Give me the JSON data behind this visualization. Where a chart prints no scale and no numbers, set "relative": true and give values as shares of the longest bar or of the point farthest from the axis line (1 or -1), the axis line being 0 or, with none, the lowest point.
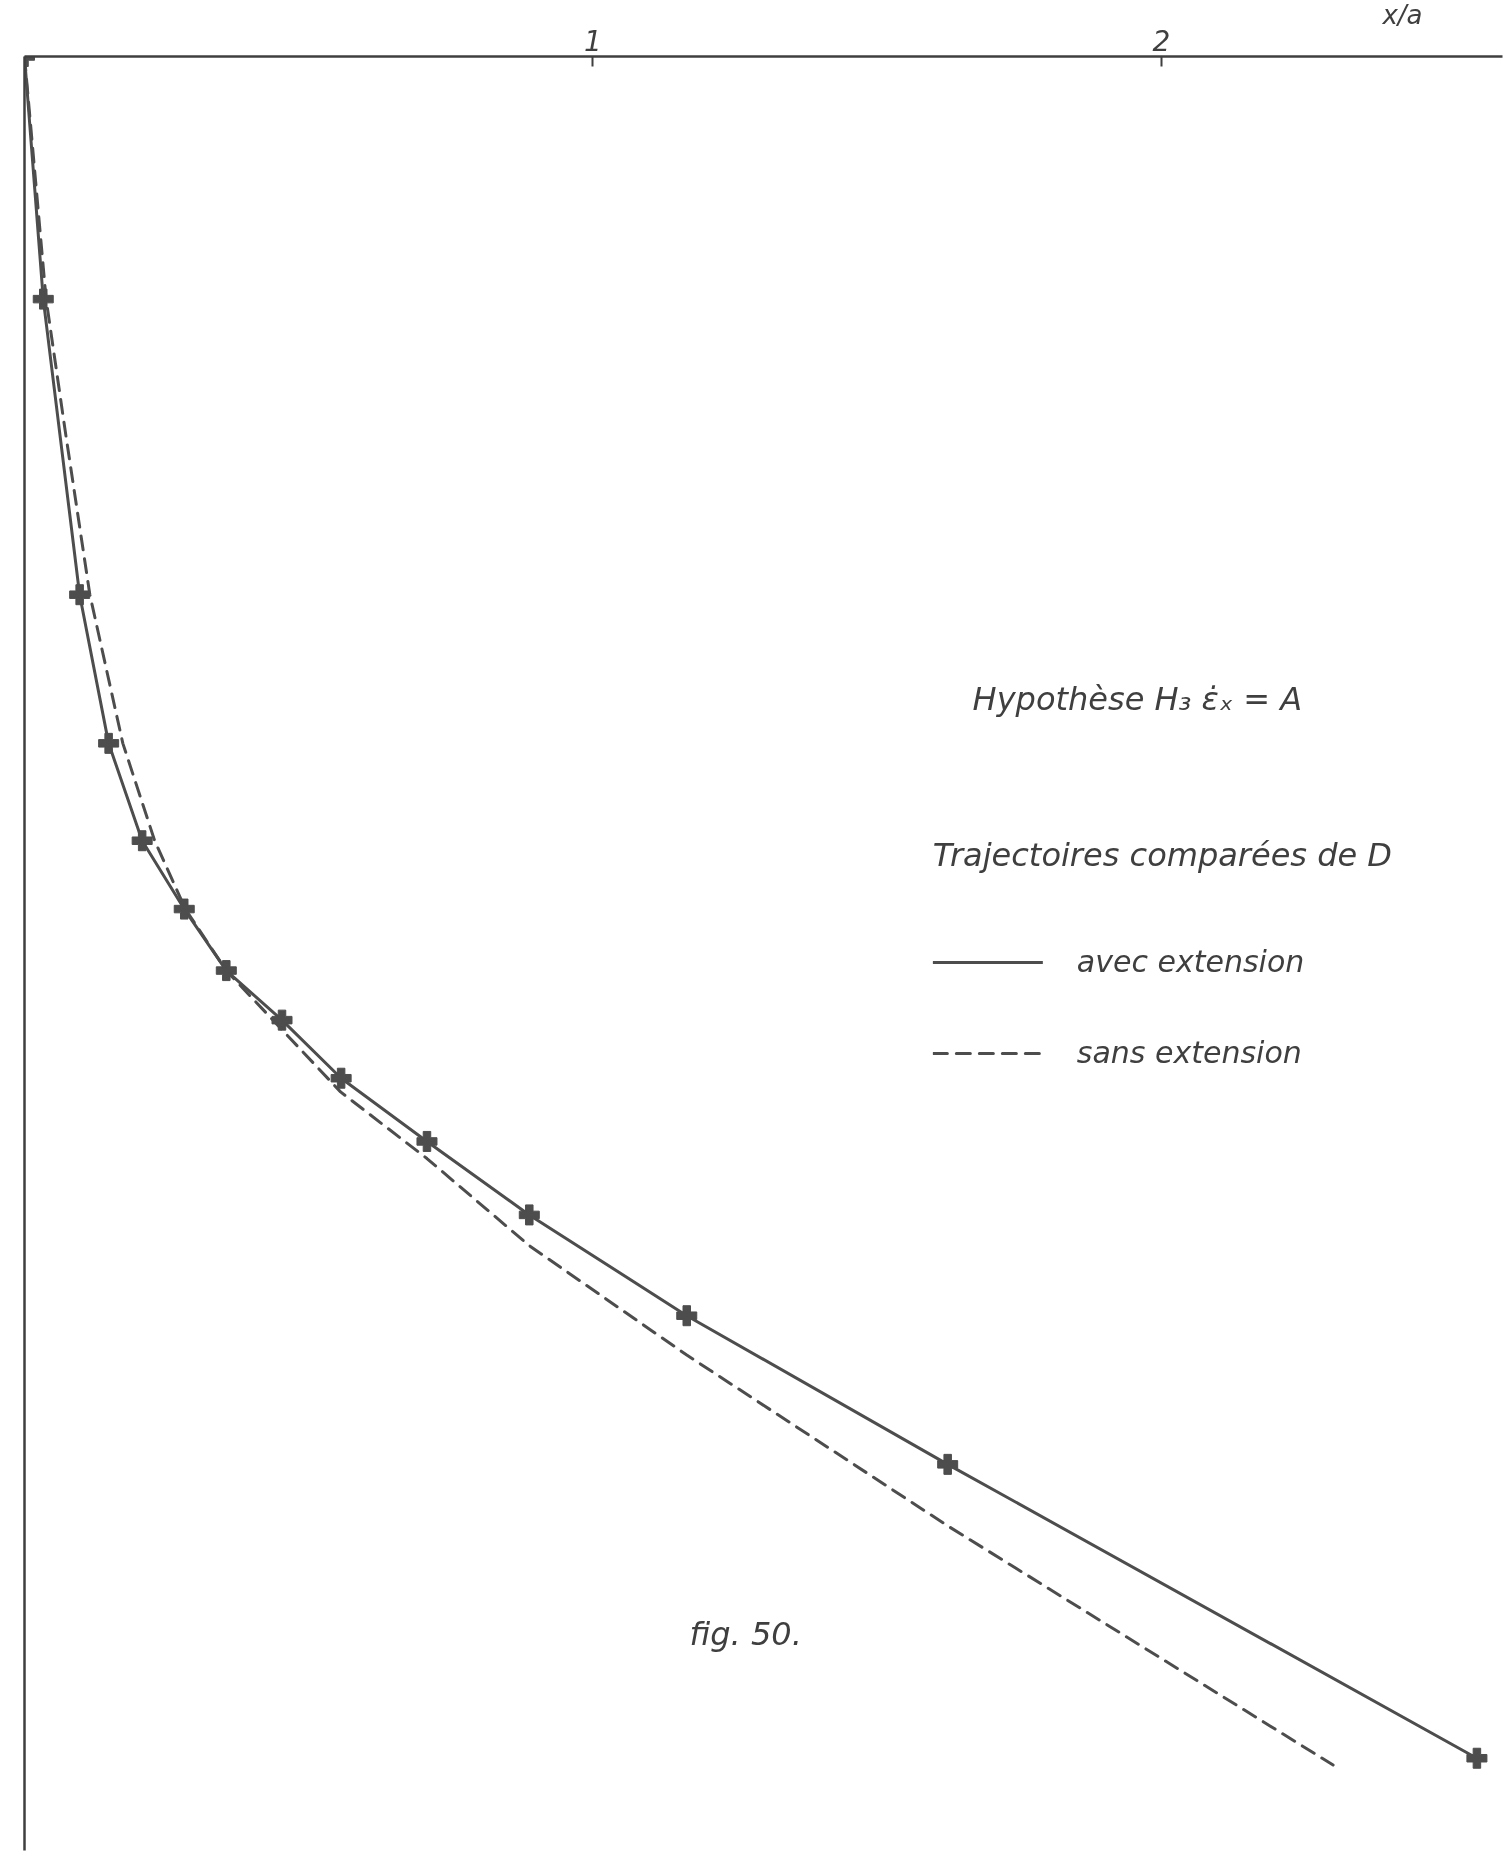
{
  "chart_data": {
    "type": "line",
    "title": "Hypothèse H₃   ε̇ₓ = A",
    "legend_title": "Trajectoires comparées de D",
    "xlabel": "x/a",
    "annotations": [
      "fig. 50."
    ],
    "relative": true,
    "xlim": [
      0,
      2.6
    ],
    "xticks": [
      1,
      2
    ],
    "legend": "right",
    "series": [
      {
        "name": "avec extension",
        "color": "#4d4d4d",
        "line_style": "solid",
        "marker": "cross",
        "x": [
          0,
          0.033,
          0.097,
          0.148,
          0.207,
          0.281,
          0.355,
          0.453,
          0.557,
          0.708,
          0.888,
          1.165,
          1.624,
          2.555
        ],
        "values": [
          0,
          -0.142,
          -0.315,
          -0.402,
          -0.459,
          -0.499,
          -0.535,
          -0.564,
          -0.598,
          -0.635,
          -0.678,
          -0.737,
          -0.824,
          -0.996
        ]
      },
      {
        "name": "sans extension",
        "color": "#4d4d4d",
        "line_style": "dashed",
        "marker": "none",
        "x": [
          0,
          0.038,
          0.072,
          0.115,
          0.173,
          0.229,
          0.283,
          0.355,
          0.556,
          0.708,
          0.888,
          1.165,
          1.624,
          2.302
        ],
        "values": [
          0,
          -0.142,
          -0.22,
          -0.315,
          -0.402,
          -0.459,
          -0.499,
          -0.535,
          -0.606,
          -0.645,
          -0.696,
          -0.76,
          -0.86,
          -1.0
        ]
      }
    ]
  }
}
